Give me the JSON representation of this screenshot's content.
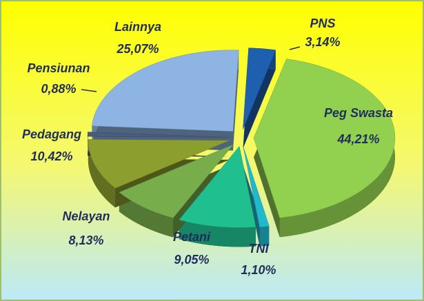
{
  "chart_data": {
    "type": "pie",
    "categories": [
      "PNS",
      "Peg Swasta",
      "TNI",
      "Petani",
      "Nelayan",
      "Pedagang",
      "Pensiunan",
      "Lainnya"
    ],
    "values": [
      3.14,
      44.21,
      1.1,
      9.05,
      8.13,
      10.42,
      0.88,
      25.07
    ],
    "value_labels": [
      "3,14%",
      "44,21%",
      "1,10%",
      "9,05%",
      "8,13%",
      "10,42%",
      "0,88%",
      "25,07%"
    ],
    "colors": [
      "#1f5fb0",
      "#92d050",
      "#22b8cc",
      "#1fbf8f",
      "#78ad4c",
      "#8c9f2e",
      "#4a5a80",
      "#8db4e2"
    ]
  }
}
